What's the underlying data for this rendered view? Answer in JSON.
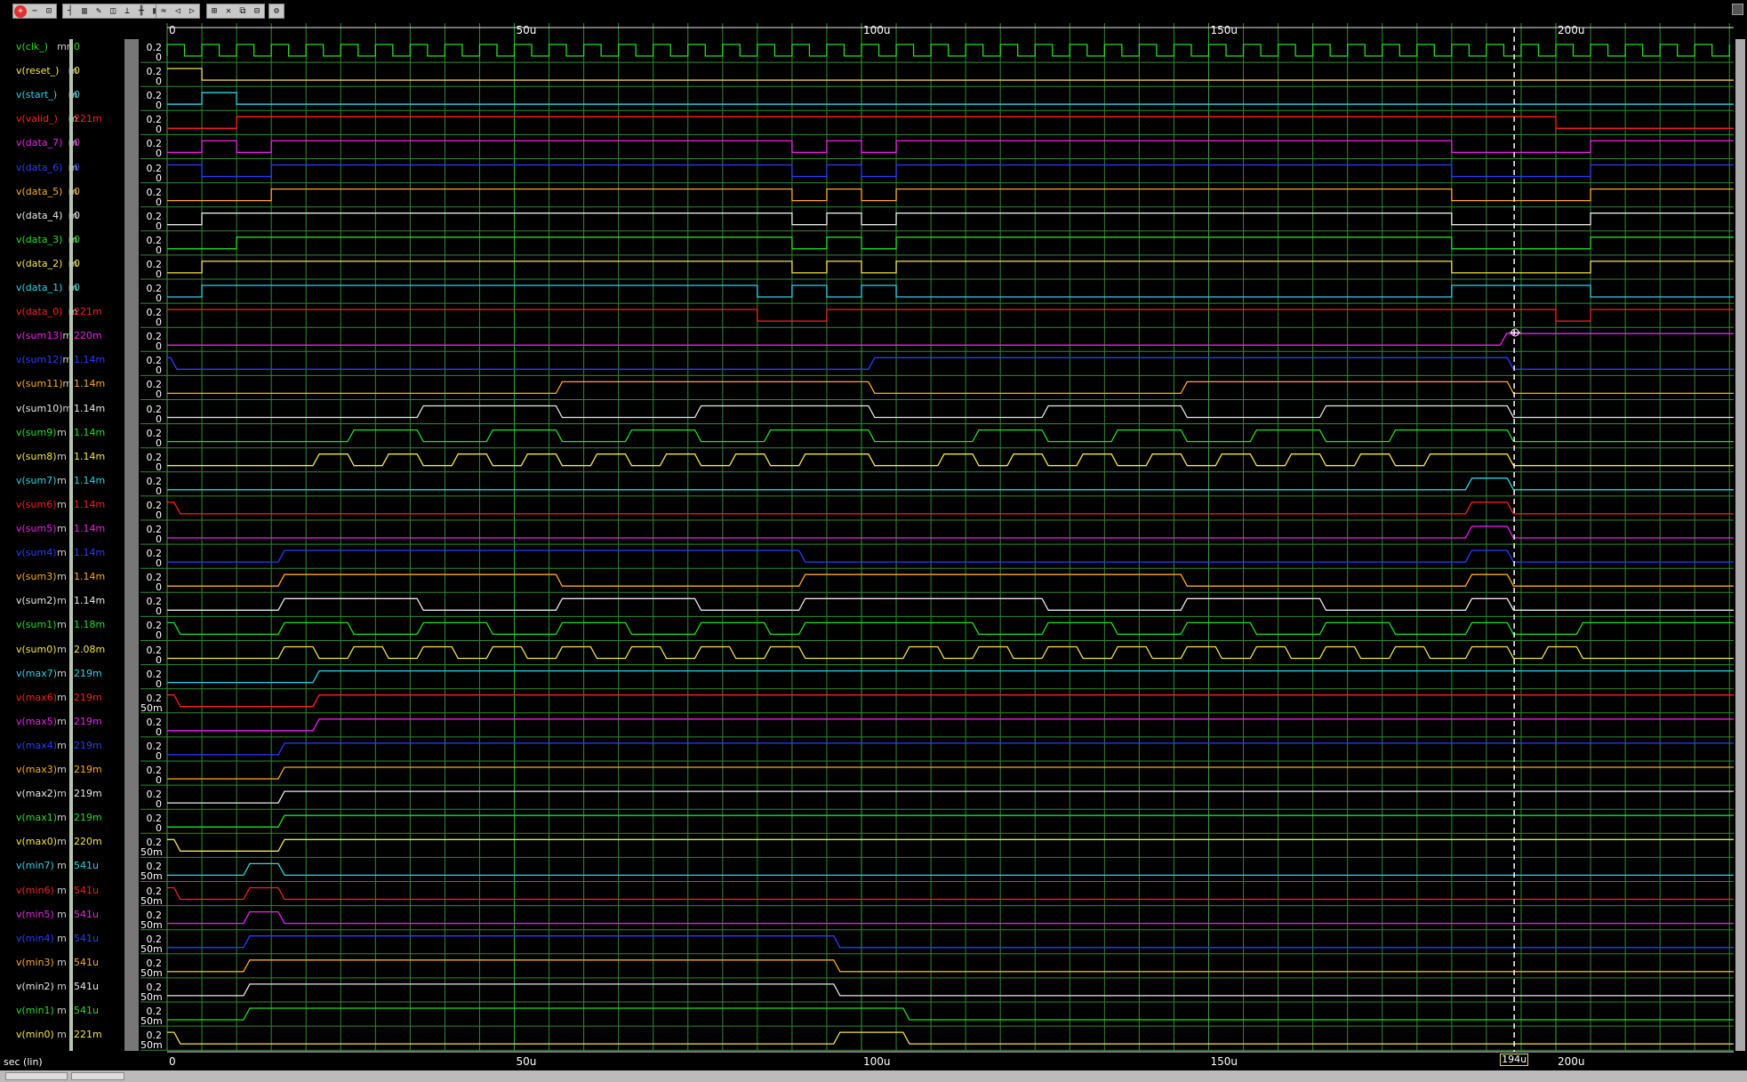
{
  "toolbar": {
    "groups": [
      {
        "x": 14,
        "icons": [
          "zoom-in-icon",
          "zoom-out-icon",
          "zoom-fit-icon"
        ]
      },
      {
        "x": 70,
        "icons": [
          "cursor-line-icon",
          "grid-icon",
          "edit-icon",
          "marker-icon",
          "trace-icon",
          "cursor-pair-icon",
          "table-icon"
        ]
      },
      {
        "x": 175,
        "icons": [
          "waveform-icon",
          "step-back-icon",
          "step-forward-icon"
        ]
      },
      {
        "x": 232,
        "icons": [
          "zoom-box-icon",
          "delete-icon",
          "group-icon",
          "ungroup-icon"
        ]
      },
      {
        "x": 302,
        "icons": [
          "config-icon"
        ]
      }
    ]
  },
  "colors": {
    "green": "#22e022",
    "yellow": "#f5e64a",
    "cyan": "#29d6e8",
    "red": "#ff1f1f",
    "magenta": "#ee22ee",
    "blue": "#2a3cff",
    "orange": "#ffaa22",
    "white": "#e8e8e8",
    "grid": "#2f8a2f",
    "cursor": "#ffffff"
  },
  "axis": {
    "ticks": [
      "0",
      "50u",
      "100u",
      "150u",
      "200u"
    ],
    "unit_label": "sec (lin)",
    "cursor_value": "194u",
    "cursor_time": 194
  },
  "signals": [
    {
      "name": "v(clk_)",
      "unit": "mm",
      "value": "0",
      "color": "green",
      "ylabels": [
        "0.2",
        "0"
      ],
      "kind": "clk"
    },
    {
      "name": "v(reset_)",
      "unit": "m",
      "value": "0",
      "color": "yellow",
      "ylabels": [
        "0.2",
        "0"
      ],
      "kind": "digital",
      "init": 1,
      "edges": [
        5
      ]
    },
    {
      "name": "v(start_)",
      "unit": "m",
      "value": "0",
      "color": "cyan",
      "ylabels": [
        "0.2",
        "0"
      ],
      "kind": "digital",
      "init": 0,
      "edges": [
        5,
        10
      ]
    },
    {
      "name": "v(valid_)",
      "unit": "m",
      "value": "221m",
      "color": "red",
      "ylabels": [
        "0.2",
        "0"
      ],
      "kind": "digital",
      "init": 0,
      "edges": [
        10,
        200
      ]
    },
    {
      "name": "v(data_7)",
      "unit": "m",
      "value": "0",
      "color": "magenta",
      "ylabels": [
        "0.2",
        "0"
      ],
      "kind": "digital",
      "init": 0,
      "edges": [
        5,
        10,
        15,
        90,
        95,
        100,
        105,
        185,
        205
      ]
    },
    {
      "name": "v(data_6)",
      "unit": "m",
      "value": "0",
      "color": "blue",
      "ylabels": [
        "0.2",
        "0"
      ],
      "kind": "digital",
      "init": 1,
      "edges": [
        5,
        15,
        90,
        95,
        100,
        105,
        185,
        205
      ]
    },
    {
      "name": "v(data_5)",
      "unit": "m",
      "value": "0",
      "color": "orange",
      "ylabels": [
        "0.2",
        "0"
      ],
      "kind": "digital",
      "init": 0,
      "edges": [
        15,
        90,
        95,
        100,
        105,
        185,
        205
      ]
    },
    {
      "name": "v(data_4)",
      "unit": "m",
      "value": "0",
      "color": "white",
      "ylabels": [
        "0.2",
        "0"
      ],
      "kind": "digital",
      "init": 0,
      "edges": [
        5,
        90,
        95,
        100,
        105,
        185,
        205
      ]
    },
    {
      "name": "v(data_3)",
      "unit": "m",
      "value": "0",
      "color": "green",
      "ylabels": [
        "0.2",
        "0"
      ],
      "kind": "digital",
      "init": 0,
      "edges": [
        10,
        90,
        95,
        100,
        105,
        185,
        205
      ]
    },
    {
      "name": "v(data_2)",
      "unit": "m",
      "value": "0",
      "color": "yellow",
      "ylabels": [
        "0.2",
        "0"
      ],
      "kind": "digital",
      "init": 0,
      "edges": [
        5,
        90,
        95,
        100,
        105,
        185,
        205
      ]
    },
    {
      "name": "v(data_1)",
      "unit": "m",
      "value": "0",
      "color": "cyan",
      "ylabels": [
        "0.2",
        "0"
      ],
      "kind": "digital",
      "init": 0,
      "edges": [
        5,
        85,
        90,
        95,
        100,
        105,
        185,
        205
      ]
    },
    {
      "name": "v(data_0)",
      "unit": "m",
      "value": "221m",
      "color": "red",
      "ylabels": [
        "0.2",
        "0"
      ],
      "kind": "digital",
      "init": 1,
      "edges": [
        85,
        95,
        200,
        205
      ]
    },
    {
      "name": "v(sum13)",
      "unit": "m",
      "value": "220m",
      "color": "magenta",
      "ylabels": [
        "0.2",
        "0"
      ],
      "kind": "analog",
      "init": 0,
      "edges": [
        192
      ]
    },
    {
      "name": "v(sum12)",
      "unit": "m",
      "value": "1.14m",
      "color": "blue",
      "ylabels": [
        "0.2",
        "0"
      ],
      "kind": "analog",
      "init": 1,
      "edges": [
        0.5,
        101,
        193
      ]
    },
    {
      "name": "v(sum11)",
      "unit": "m",
      "value": "1.14m",
      "color": "orange",
      "ylabels": [
        "0.2",
        "0"
      ],
      "kind": "analog",
      "init": 0,
      "edges": [
        56,
        101,
        146,
        193
      ]
    },
    {
      "name": "v(sum10)",
      "unit": "m",
      "value": "1.14m",
      "color": "white",
      "ylabels": [
        "0.2",
        "0"
      ],
      "kind": "analog",
      "init": 0,
      "edges": [
        36,
        56,
        76,
        101,
        126,
        146,
        166,
        193
      ]
    },
    {
      "name": "v(sum9)",
      "unit": "m",
      "value": "1.14m",
      "color": "green",
      "ylabels": [
        "0.2",
        "0"
      ],
      "kind": "analog",
      "init": 0,
      "edges": [
        26,
        36,
        46,
        56,
        66,
        76,
        86,
        101,
        116,
        126,
        136,
        146,
        156,
        166,
        176,
        193
      ]
    },
    {
      "name": "v(sum8)",
      "unit": "m",
      "value": "1.14m",
      "color": "yellow",
      "ylabels": [
        "0.2",
        "0"
      ],
      "kind": "analog",
      "init": 0,
      "edges": [
        21,
        26,
        31,
        36,
        41,
        46,
        51,
        56,
        61,
        66,
        71,
        76,
        81,
        86,
        91,
        101,
        111,
        116,
        121,
        126,
        131,
        136,
        141,
        146,
        151,
        156,
        161,
        166,
        171,
        176,
        181,
        193
      ]
    },
    {
      "name": "v(sum7)",
      "unit": "m",
      "value": "1.14m",
      "color": "cyan",
      "ylabels": [
        "0.2",
        "0"
      ],
      "kind": "analog",
      "init": 0,
      "edges": [
        187,
        193
      ]
    },
    {
      "name": "v(sum6)",
      "unit": "m",
      "value": "1.14m",
      "color": "red",
      "ylabels": [
        "0.2",
        "0"
      ],
      "kind": "analog",
      "init": 1,
      "edges": [
        1,
        187,
        193
      ]
    },
    {
      "name": "v(sum5)",
      "unit": "m",
      "value": "1.14m",
      "color": "magenta",
      "ylabels": [
        "0.2",
        "0"
      ],
      "kind": "analog",
      "init": 0,
      "edges": [
        187,
        193
      ]
    },
    {
      "name": "v(sum4)",
      "unit": "m",
      "value": "1.14m",
      "color": "blue",
      "ylabels": [
        "0.2",
        "0"
      ],
      "kind": "analog",
      "init": 0,
      "edges": [
        16,
        91,
        187,
        193
      ]
    },
    {
      "name": "v(sum3)",
      "unit": "m",
      "value": "1.14m",
      "color": "orange",
      "ylabels": [
        "0.2",
        "0"
      ],
      "kind": "analog",
      "init": 0,
      "edges": [
        16,
        56,
        91,
        146,
        187,
        193
      ]
    },
    {
      "name": "v(sum2)",
      "unit": "m",
      "value": "1.14m",
      "color": "white",
      "ylabels": [
        "0.2",
        "0"
      ],
      "kind": "analog",
      "init": 0,
      "edges": [
        16,
        36,
        56,
        76,
        91,
        126,
        146,
        166,
        187,
        193
      ]
    },
    {
      "name": "v(sum1)",
      "unit": "m",
      "value": "1.18m",
      "color": "green",
      "ylabels": [
        "0.2",
        "0"
      ],
      "kind": "analog",
      "init": 1,
      "edges": [
        1,
        16,
        26,
        36,
        46,
        56,
        66,
        76,
        86,
        91,
        116,
        126,
        136,
        146,
        156,
        166,
        176,
        187,
        193,
        203
      ]
    },
    {
      "name": "v(sum0)",
      "unit": "m",
      "value": "2.08m",
      "color": "yellow",
      "ylabels": [
        "0.2",
        "0"
      ],
      "kind": "analog",
      "init": 0,
      "edges": [
        16,
        21,
        26,
        31,
        36,
        41,
        46,
        51,
        56,
        61,
        66,
        71,
        76,
        81,
        86,
        91,
        106,
        111,
        116,
        121,
        126,
        131,
        136,
        141,
        146,
        151,
        156,
        161,
        166,
        171,
        176,
        181,
        187,
        193,
        198,
        203
      ]
    },
    {
      "name": "v(max7)",
      "unit": "m",
      "value": "219m",
      "color": "cyan",
      "ylabels": [
        "0.2",
        "0"
      ],
      "kind": "analog",
      "init": 0,
      "edges": [
        21
      ]
    },
    {
      "name": "v(max6)",
      "unit": "m",
      "value": "219m",
      "color": "red",
      "ylabels": [
        "0.2",
        "50m"
      ],
      "kind": "analog",
      "init": 1,
      "edges": [
        1,
        21
      ]
    },
    {
      "name": "v(max5)",
      "unit": "m",
      "value": "219m",
      "color": "magenta",
      "ylabels": [
        "0.2",
        "0"
      ],
      "kind": "analog",
      "init": 0,
      "edges": [
        21
      ]
    },
    {
      "name": "v(max4)",
      "unit": "m",
      "value": "219m",
      "color": "blue",
      "ylabels": [
        "0.2",
        "0"
      ],
      "kind": "analog",
      "init": 0,
      "edges": [
        16
      ]
    },
    {
      "name": "v(max3)",
      "unit": "m",
      "value": "219m",
      "color": "orange",
      "ylabels": [
        "0.2",
        "0"
      ],
      "kind": "analog",
      "init": 0,
      "edges": [
        16
      ]
    },
    {
      "name": "v(max2)",
      "unit": "m",
      "value": "219m",
      "color": "white",
      "ylabels": [
        "0.2",
        "0"
      ],
      "kind": "analog",
      "init": 0,
      "edges": [
        16
      ]
    },
    {
      "name": "v(max1)",
      "unit": "m",
      "value": "219m",
      "color": "green",
      "ylabels": [
        "0.2",
        "0"
      ],
      "kind": "analog",
      "init": 0,
      "edges": [
        16
      ]
    },
    {
      "name": "v(max0)",
      "unit": "m",
      "value": "220m",
      "color": "yellow",
      "ylabels": [
        "0.2",
        "50m"
      ],
      "kind": "analog",
      "init": 1,
      "edges": [
        1,
        16
      ]
    },
    {
      "name": "v(min7)",
      "unit": "m",
      "value": "541u",
      "color": "cyan",
      "ylabels": [
        "0.2",
        "50m"
      ],
      "kind": "analog",
      "init": 0,
      "edges": [
        11,
        16
      ]
    },
    {
      "name": "v(min6)",
      "unit": "m",
      "value": "541u",
      "color": "red",
      "ylabels": [
        "0.2",
        "50m"
      ],
      "kind": "analog",
      "init": 1,
      "edges": [
        1,
        11,
        16
      ]
    },
    {
      "name": "v(min5)",
      "unit": "m",
      "value": "541u",
      "color": "magenta",
      "ylabels": [
        "0.2",
        "50m"
      ],
      "kind": "analog",
      "init": 0,
      "edges": [
        11,
        16
      ]
    },
    {
      "name": "v(min4)",
      "unit": "m",
      "value": "541u",
      "color": "blue",
      "ylabels": [
        "0.2",
        "50m"
      ],
      "kind": "analog",
      "init": 0,
      "edges": [
        11,
        96
      ]
    },
    {
      "name": "v(min3)",
      "unit": "m",
      "value": "541u",
      "color": "orange",
      "ylabels": [
        "0.2",
        "50m"
      ],
      "kind": "analog",
      "init": 0,
      "edges": [
        11,
        96
      ]
    },
    {
      "name": "v(min2)",
      "unit": "m",
      "value": "541u",
      "color": "white",
      "ylabels": [
        "0.2",
        "50m"
      ],
      "kind": "analog",
      "init": 0,
      "edges": [
        11,
        96
      ]
    },
    {
      "name": "v(min1)",
      "unit": "m",
      "value": "541u",
      "color": "green",
      "ylabels": [
        "0.2",
        "50m"
      ],
      "kind": "analog",
      "init": 0,
      "edges": [
        11,
        106
      ]
    },
    {
      "name": "v(min0)",
      "unit": "m",
      "value": "221m",
      "color": "yellow",
      "ylabels": [
        "0.2",
        "50m"
      ],
      "kind": "analog",
      "init": 1,
      "edges": [
        1,
        96,
        106
      ]
    }
  ]
}
